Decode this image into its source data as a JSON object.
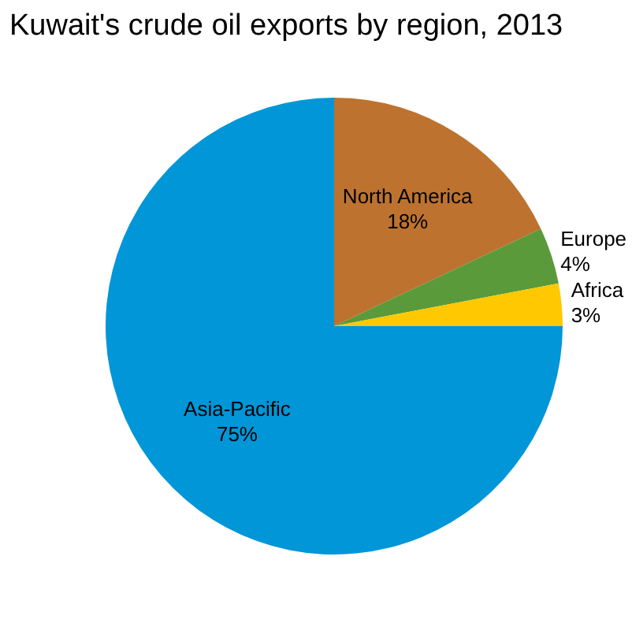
{
  "chart_data": {
    "type": "pie",
    "title": "Kuwait's crude oil exports by region, 2013",
    "categories": [
      "North America",
      "Europe",
      "Africa",
      "Asia-Pacific"
    ],
    "values": [
      18,
      4,
      3,
      75
    ],
    "value_labels": [
      "18%",
      "4%",
      "3%",
      "75%"
    ],
    "colors": [
      "#bd732f",
      "#5a9a3a",
      "#ffc800",
      "#0096d7"
    ],
    "legend": false
  }
}
